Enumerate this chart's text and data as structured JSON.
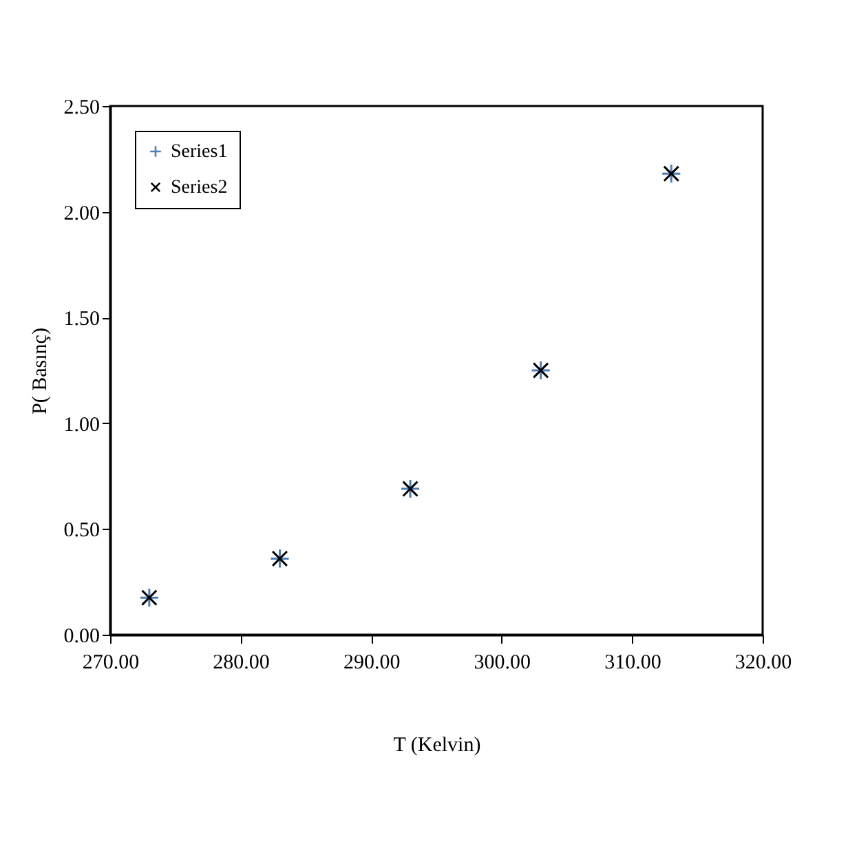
{
  "chart_data": {
    "type": "scatter",
    "xlabel": "T (Kelvin)",
    "ylabel": "P( Basınç)",
    "x": [
      273,
      283,
      293,
      303,
      313
    ],
    "series": [
      {
        "name": "Series1",
        "color": "#4a7ebb",
        "marker": "cross",
        "values": [
          0.175,
          0.36,
          0.69,
          1.25,
          2.18
        ]
      },
      {
        "name": "Series2",
        "color": "#000000",
        "marker": "x",
        "values": [
          0.175,
          0.36,
          0.69,
          1.25,
          2.18
        ]
      }
    ],
    "xlim": [
      270,
      320
    ],
    "xticks": [
      {
        "value": 270,
        "label": "270.00"
      },
      {
        "value": 280,
        "label": "280.00"
      },
      {
        "value": 290,
        "label": "290.00"
      },
      {
        "value": 300,
        "label": "300.00"
      },
      {
        "value": 310,
        "label": "310.00"
      },
      {
        "value": 320,
        "label": "320.00"
      }
    ],
    "ylim": [
      0,
      2.5
    ],
    "yticks": [
      {
        "value": 0,
        "label": "0.00"
      },
      {
        "value": 0.5,
        "label": "0.50"
      },
      {
        "value": 1,
        "label": "1.00"
      },
      {
        "value": 1.5,
        "label": "1.50"
      },
      {
        "value": 2,
        "label": "2.00"
      },
      {
        "value": 2.5,
        "label": "2.50"
      }
    ],
    "grid": false,
    "legend": "top left"
  }
}
